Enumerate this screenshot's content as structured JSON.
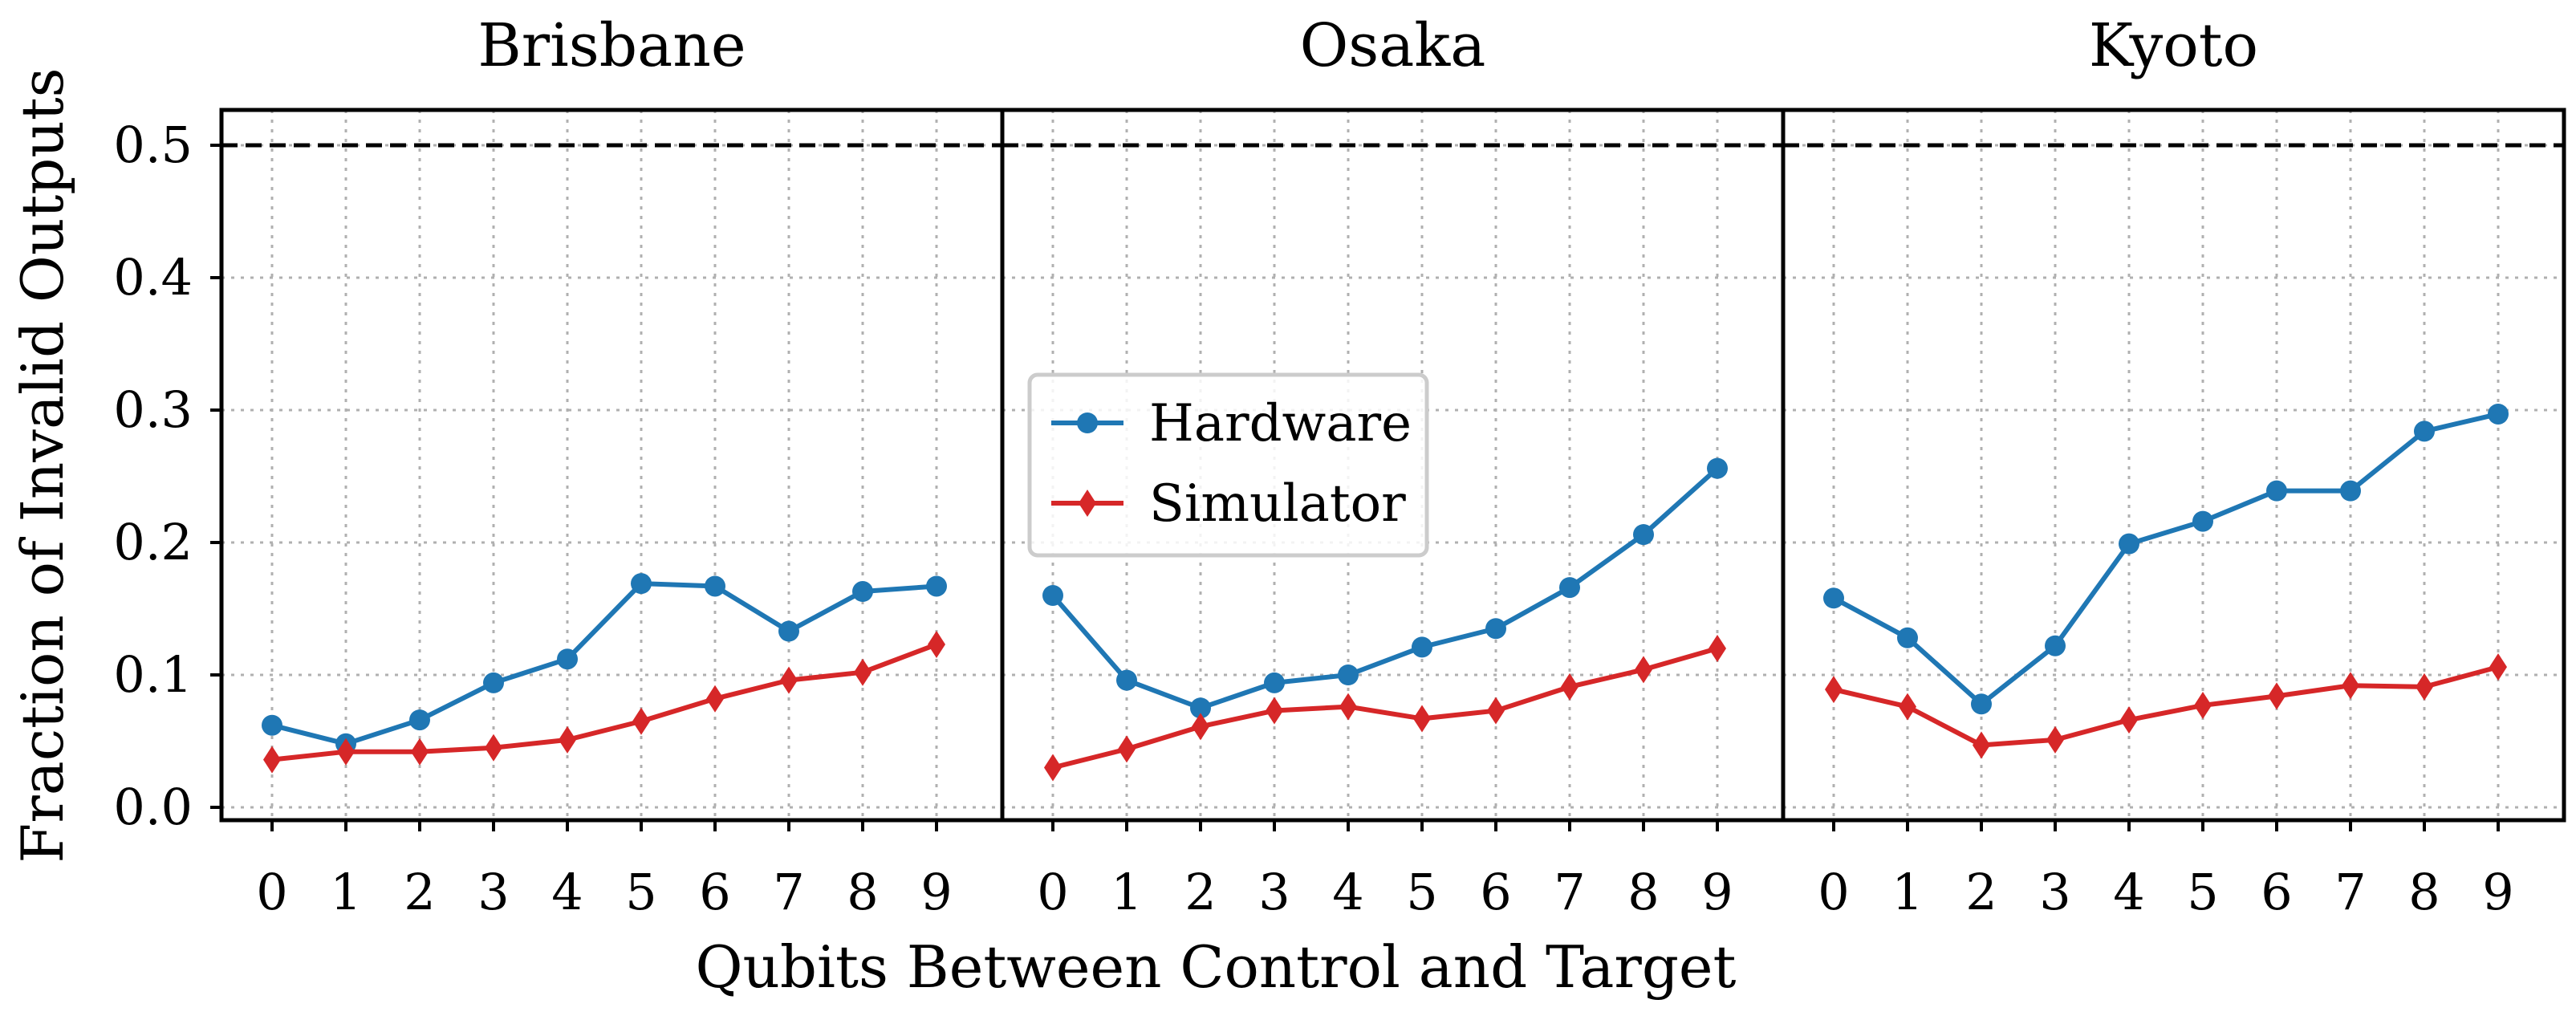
{
  "chart_data": {
    "type": "line",
    "ylabel": "Fraction of Invalid Outputs",
    "xlabel": "Qubits Between Control and Target",
    "x": [
      0,
      1,
      2,
      3,
      4,
      5,
      6,
      7,
      8,
      9
    ],
    "x_tick_labels": [
      "0",
      "1",
      "2",
      "3",
      "4",
      "5",
      "6",
      "7",
      "8",
      "9"
    ],
    "ylim": [
      -0.01,
      0.53
    ],
    "y_ticks": [
      0.0,
      0.1,
      0.2,
      0.3,
      0.4,
      0.5
    ],
    "y_tick_labels": [
      "0.0",
      "0.1",
      "0.2",
      "0.3",
      "0.4",
      "0.5"
    ],
    "grid": true,
    "reference_line": {
      "y": 0.5,
      "style": "dashed"
    },
    "legend": {
      "placement": "center",
      "entries": [
        "Hardware",
        "Simulator"
      ]
    },
    "colors": {
      "Hardware": "#1f77b4",
      "Simulator": "#d62728"
    },
    "panels": [
      {
        "title": "Brisbane",
        "series": [
          {
            "name": "Hardware",
            "marker": "circle",
            "values": [
              0.062,
              0.048,
              0.066,
              0.094,
              0.112,
              0.169,
              0.167,
              0.133,
              0.163,
              0.167
            ]
          },
          {
            "name": "Simulator",
            "marker": "diamond",
            "values": [
              0.036,
              0.042,
              0.042,
              0.045,
              0.051,
              0.065,
              0.082,
              0.096,
              0.102,
              0.123
            ]
          }
        ]
      },
      {
        "title": "Osaka",
        "series": [
          {
            "name": "Hardware",
            "marker": "circle",
            "values": [
              0.16,
              0.096,
              0.075,
              0.094,
              0.1,
              0.121,
              0.135,
              0.166,
              0.206,
              0.256
            ]
          },
          {
            "name": "Simulator",
            "marker": "diamond",
            "values": [
              0.03,
              0.044,
              0.061,
              0.073,
              0.076,
              0.067,
              0.073,
              0.091,
              0.104,
              0.12
            ]
          }
        ]
      },
      {
        "title": "Kyoto",
        "series": [
          {
            "name": "Hardware",
            "marker": "circle",
            "values": [
              0.158,
              0.128,
              0.078,
              0.122,
              0.199,
              0.216,
              0.239,
              0.239,
              0.284,
              0.297
            ]
          },
          {
            "name": "Simulator",
            "marker": "diamond",
            "values": [
              0.089,
              0.076,
              0.047,
              0.051,
              0.066,
              0.077,
              0.084,
              0.092,
              0.091,
              0.106
            ]
          }
        ]
      }
    ]
  }
}
